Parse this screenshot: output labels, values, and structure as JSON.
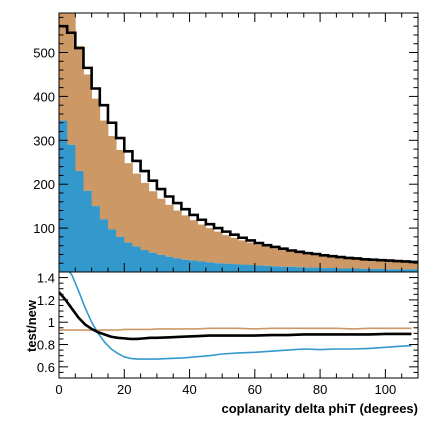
{
  "chart_data": [
    {
      "type": "bar",
      "title": "",
      "xlabel": "",
      "ylabel": "",
      "xlim": [
        0,
        110
      ],
      "ylim": [
        0,
        590
      ],
      "y_tick_labels": [
        "100",
        "200",
        "300",
        "400",
        "500"
      ],
      "y_ticks": [
        100,
        200,
        300,
        400,
        500
      ],
      "bin_width": 2.5,
      "stacked": true,
      "grid": false,
      "legend": "none",
      "x": [
        1.25,
        3.75,
        6.25,
        8.75,
        11.25,
        13.75,
        16.25,
        18.75,
        21.25,
        23.75,
        26.25,
        28.75,
        31.25,
        33.75,
        36.25,
        38.75,
        41.25,
        43.75,
        46.25,
        48.75,
        51.25,
        53.75,
        56.25,
        58.75,
        61.25,
        63.75,
        66.25,
        68.75,
        71.25,
        73.75,
        76.25,
        78.75,
        81.25,
        83.75,
        86.25,
        88.75,
        91.25,
        93.75,
        96.25,
        98.75,
        101.25,
        103.75,
        106.25,
        108.75
      ],
      "series": [
        {
          "type": "bar",
          "color": "#3399cc",
          "values": [
            345,
            290,
            230,
            185,
            150,
            120,
            97,
            80,
            67,
            58,
            50,
            44,
            39,
            35,
            31,
            28,
            26,
            24,
            22,
            20,
            19,
            18,
            17,
            16,
            15,
            14,
            13,
            12,
            12,
            11,
            10,
            10,
            9,
            9,
            8,
            8,
            8,
            7,
            7,
            7,
            6,
            6,
            6,
            6
          ]
        },
        {
          "type": "bar",
          "color": "#cc9966",
          "values": [
            245,
            310,
            285,
            265,
            245,
            225,
            213,
            198,
            181,
            166,
            153,
            140,
            128,
            118,
            109,
            101,
            92,
            84,
            78,
            72,
            65,
            60,
            55,
            51,
            47,
            44,
            41,
            38,
            36,
            34,
            32,
            30,
            28,
            26,
            25,
            24,
            22,
            21,
            20,
            19,
            18,
            17,
            16,
            16
          ]
        },
        {
          "type": "step",
          "color": "#000000",
          "values": [
            560,
            545,
            510,
            465,
            418,
            380,
            340,
            305,
            275,
            253,
            230,
            208,
            189,
            172,
            157,
            143,
            130,
            119,
            109,
            100,
            92,
            85,
            78,
            72,
            66,
            61,
            57,
            53,
            49,
            46,
            43,
            41,
            38,
            36,
            34,
            32,
            31,
            29,
            28,
            27,
            26,
            25,
            24,
            23
          ]
        }
      ]
    },
    {
      "type": "line",
      "title": "",
      "xlabel": "coplanarity delta phiT (degrees)",
      "ylabel": "test/new",
      "xlim": [
        0,
        110
      ],
      "ylim": [
        0.5,
        1.45
      ],
      "y_tick_labels": [
        "0.6",
        "0.8",
        "1",
        "1.2",
        "1.4"
      ],
      "y_ticks": [
        0.6,
        0.8,
        1.0,
        1.2,
        1.4
      ],
      "x_tick_labels": [
        "0",
        "20",
        "40",
        "60",
        "80",
        "100"
      ],
      "x_ticks": [
        0,
        20,
        40,
        60,
        80,
        100
      ],
      "grid": false,
      "legend": "none",
      "x": [
        0,
        2,
        4,
        6,
        8,
        10,
        12,
        14,
        16,
        18,
        20,
        22,
        24,
        26,
        28,
        30,
        34,
        38,
        42,
        46,
        50,
        55,
        60,
        65,
        70,
        75,
        80,
        85,
        90,
        95,
        100,
        105,
        108
      ],
      "series": [
        {
          "color": "#000000",
          "values": [
            1.27,
            1.2,
            1.12,
            1.04,
            0.98,
            0.94,
            0.91,
            0.89,
            0.87,
            0.86,
            0.855,
            0.85,
            0.85,
            0.855,
            0.86,
            0.86,
            0.865,
            0.87,
            0.875,
            0.88,
            0.88,
            0.88,
            0.88,
            0.885,
            0.885,
            0.89,
            0.89,
            0.89,
            0.89,
            0.89,
            0.895,
            0.895,
            0.895
          ]
        },
        {
          "color": "#cc9966",
          "values": [
            0.93,
            0.93,
            0.93,
            0.93,
            0.93,
            0.93,
            0.93,
            0.93,
            0.93,
            0.93,
            0.935,
            0.935,
            0.935,
            0.935,
            0.935,
            0.94,
            0.94,
            0.94,
            0.94,
            0.945,
            0.945,
            0.945,
            0.94,
            0.945,
            0.945,
            0.945,
            0.945,
            0.945,
            0.94,
            0.945,
            0.945,
            0.945,
            0.945
          ]
        },
        {
          "color": "#3399cc",
          "values": [
            1.6,
            1.5,
            1.42,
            1.28,
            1.13,
            1.0,
            0.9,
            0.82,
            0.76,
            0.72,
            0.69,
            0.675,
            0.67,
            0.67,
            0.67,
            0.67,
            0.675,
            0.68,
            0.69,
            0.7,
            0.715,
            0.725,
            0.73,
            0.74,
            0.75,
            0.76,
            0.755,
            0.76,
            0.76,
            0.765,
            0.775,
            0.785,
            0.79
          ]
        }
      ]
    }
  ]
}
